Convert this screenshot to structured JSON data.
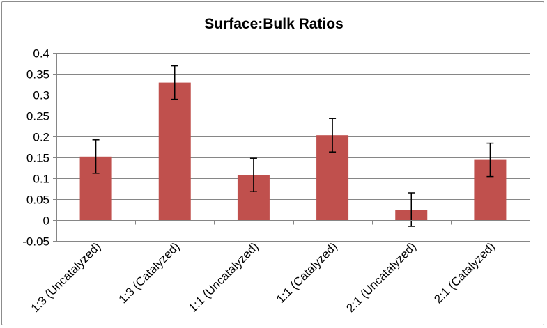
{
  "chart_data": {
    "type": "bar",
    "title": "Surface:Bulk Ratios",
    "categories": [
      "1:3 (Uncatalyzed)",
      "1:3 (Catalyzed)",
      "1:1 (Uncatalyzed)",
      "1:1 (Catalyzed)",
      "2:1 (Uncatalyzed)",
      "2:1 (Catalyzed)"
    ],
    "values": [
      0.152,
      0.329,
      0.108,
      0.203,
      0.025,
      0.144
    ],
    "error": [
      0.04,
      0.04,
      0.04,
      0.04,
      0.04,
      0.04
    ],
    "ylim": [
      -0.05,
      0.4
    ],
    "yticks": [
      "-0.05",
      "0",
      "0.05",
      "0.1",
      "0.15",
      "0.2",
      "0.25",
      "0.3",
      "0.35",
      "0.4"
    ],
    "xlabel": "",
    "ylabel": "",
    "grid": true,
    "legend": "none",
    "colors": {
      "bar": "#c0504d",
      "grid": "#868686",
      "axis": "#868686",
      "error": "#000000"
    }
  }
}
